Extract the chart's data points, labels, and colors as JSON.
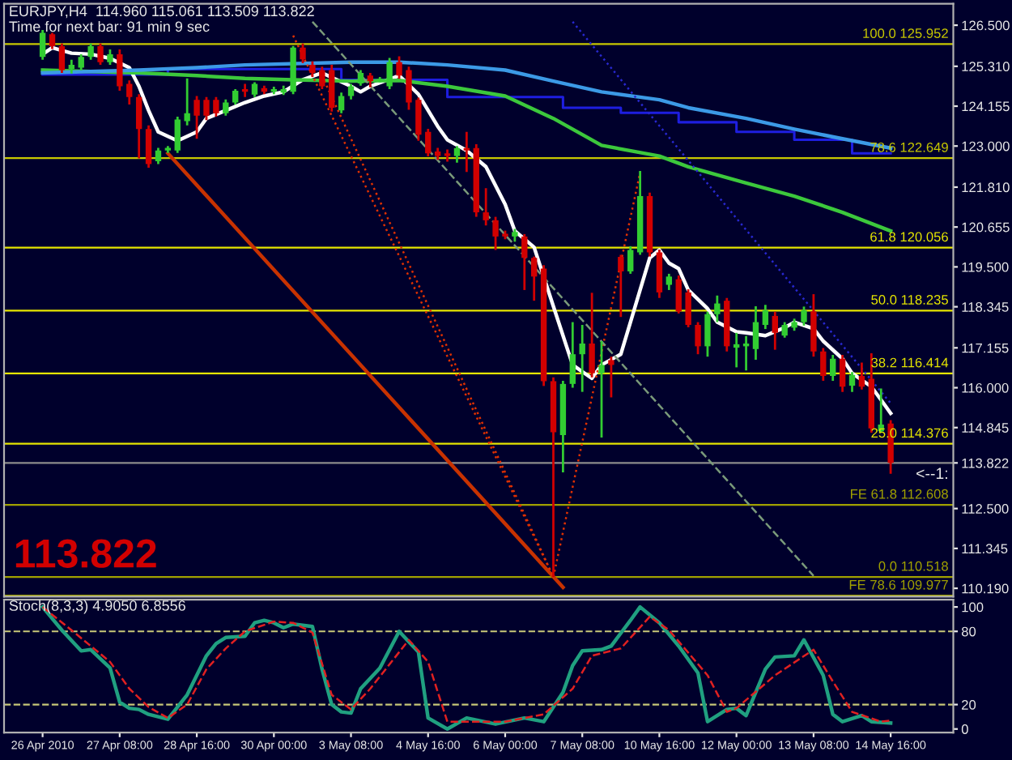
{
  "chart_data": [
    {
      "type": "candlestick",
      "title": "EURJPY,H4  114.960 115.061 113.509 113.822",
      "subtitle": "Time for next bar: 91 min 9 sec",
      "categories": [
        null,
        null,
        null,
        null,
        null,
        null,
        null,
        null,
        null,
        null,
        null,
        null,
        null,
        null,
        null,
        null,
        null,
        null,
        null,
        null,
        null,
        null,
        null,
        null,
        null,
        null,
        null,
        null,
        null,
        null,
        null,
        null,
        null,
        null,
        null,
        null,
        null,
        null,
        null,
        null,
        null,
        null,
        null,
        null,
        null,
        null,
        null,
        null,
        null,
        null,
        null,
        null,
        null,
        null,
        null,
        null,
        null,
        null,
        null,
        null,
        null,
        null,
        null,
        null,
        null,
        null,
        null,
        null,
        null,
        null,
        null,
        null,
        null,
        null,
        null,
        null,
        null,
        null,
        null,
        null,
        null,
        null,
        null,
        null,
        null,
        null,
        null,
        null,
        null
      ],
      "ohlc": [
        [
          125.58,
          126.36,
          125.5,
          126.28
        ],
        [
          126.24,
          126.28,
          125.81,
          125.89
        ],
        [
          125.89,
          125.97,
          125.12,
          125.2
        ],
        [
          125.23,
          125.5,
          125.1,
          125.35
        ],
        [
          125.27,
          125.66,
          125.2,
          125.58
        ],
        [
          125.58,
          125.97,
          125.5,
          125.89
        ],
        [
          125.89,
          125.97,
          125.35,
          125.43
        ],
        [
          125.43,
          125.8,
          125.35,
          125.66
        ],
        [
          125.66,
          125.8,
          124.6,
          124.73
        ],
        [
          124.8,
          124.9,
          124.2,
          124.42
        ],
        [
          124.42,
          124.5,
          122.64,
          123.49
        ],
        [
          123.49,
          123.6,
          122.37,
          122.48
        ],
        [
          122.56,
          122.95,
          122.48,
          122.87
        ],
        [
          122.87,
          123.0,
          122.8,
          122.95
        ],
        [
          122.87,
          123.85,
          122.8,
          123.77
        ],
        [
          123.72,
          124.96,
          123.6,
          123.95
        ],
        [
          124.34,
          124.45,
          123.21,
          123.88
        ],
        [
          124.34,
          124.42,
          123.75,
          123.88
        ],
        [
          124.34,
          124.42,
          123.85,
          123.95
        ],
        [
          123.95,
          124.35,
          123.88,
          124.26
        ],
        [
          124.26,
          124.65,
          124.2,
          124.6
        ],
        [
          124.65,
          124.8,
          124.42,
          124.57
        ],
        [
          124.49,
          124.85,
          124.42,
          124.8
        ],
        [
          124.68,
          124.75,
          124.5,
          124.57
        ],
        [
          124.57,
          124.72,
          124.5,
          124.65
        ],
        [
          124.55,
          124.75,
          124.48,
          124.65
        ],
        [
          124.57,
          125.9,
          124.5,
          125.85
        ],
        [
          125.85,
          125.97,
          125.4,
          125.51
        ],
        [
          125.35,
          125.45,
          125.0,
          125.12
        ],
        [
          125.2,
          125.3,
          124.65,
          124.73
        ],
        [
          125.2,
          125.35,
          124.0,
          124.11
        ],
        [
          124.03,
          124.55,
          123.95,
          124.45
        ],
        [
          124.45,
          124.8,
          124.35,
          124.73
        ],
        [
          124.81,
          125.2,
          124.75,
          125.12
        ],
        [
          125.04,
          125.12,
          124.7,
          124.88
        ],
        [
          124.9,
          125.0,
          124.85,
          124.95
        ],
        [
          124.73,
          125.55,
          124.65,
          125.43
        ],
        [
          125.43,
          125.6,
          124.95,
          125.04
        ],
        [
          125.2,
          125.3,
          124.05,
          124.26
        ],
        [
          124.34,
          124.4,
          123.15,
          123.33
        ],
        [
          123.41,
          123.5,
          122.7,
          122.79
        ],
        [
          122.84,
          122.95,
          122.6,
          122.71
        ],
        [
          122.79,
          122.9,
          122.55,
          122.71
        ],
        [
          122.71,
          123.0,
          122.52,
          122.94
        ],
        [
          122.94,
          123.41,
          122.25,
          122.87
        ],
        [
          122.94,
          123.05,
          120.95,
          121.08
        ],
        [
          121.08,
          121.78,
          120.7,
          120.85
        ],
        [
          120.85,
          120.95,
          119.99,
          120.38
        ],
        [
          120.46,
          120.55,
          120.3,
          120.38
        ],
        [
          120.38,
          120.6,
          120.23,
          120.51
        ],
        [
          120.38,
          120.45,
          118.83,
          119.76
        ],
        [
          119.76,
          119.8,
          118.52,
          119.22
        ],
        [
          119.45,
          119.55,
          116.05,
          116.19
        ],
        [
          116.19,
          116.3,
          110.52,
          114.71
        ],
        [
          114.63,
          116.2,
          113.55,
          116.11
        ],
        [
          116.11,
          117.9,
          116.0,
          116.97
        ],
        [
          116.97,
          117.82,
          115.88,
          117.28
        ],
        [
          117.28,
          118.75,
          116.3,
          116.42
        ],
        [
          116.42,
          117.35,
          114.56,
          116.66
        ],
        [
          116.8,
          116.9,
          115.72,
          116.66
        ],
        [
          119.79,
          119.85,
          118.05,
          119.37
        ],
        [
          119.37,
          120.1,
          119.3,
          119.99
        ],
        [
          119.92,
          122.28,
          119.85,
          121.55
        ],
        [
          121.55,
          121.65,
          119.8,
          119.92
        ],
        [
          119.92,
          120.0,
          118.6,
          118.76
        ],
        [
          118.98,
          119.3,
          118.83,
          119.22
        ],
        [
          119.14,
          119.25,
          118.15,
          118.21
        ],
        [
          118.76,
          118.85,
          117.75,
          117.82
        ],
        [
          117.82,
          117.9,
          116.97,
          117.2
        ],
        [
          117.2,
          118.2,
          116.9,
          118.13
        ],
        [
          118.13,
          118.67,
          117.9,
          118.44
        ],
        [
          118.52,
          118.6,
          117.05,
          117.2
        ],
        [
          117.16,
          117.59,
          116.59,
          117.26
        ],
        [
          117.2,
          117.5,
          116.5,
          117.28
        ],
        [
          117.12,
          118.36,
          116.81,
          117.9
        ],
        [
          117.82,
          118.4,
          117.7,
          118.24
        ],
        [
          118.08,
          118.2,
          117.1,
          117.59
        ],
        [
          117.51,
          117.9,
          117.45,
          117.82
        ],
        [
          117.74,
          118.0,
          117.65,
          117.9
        ],
        [
          117.9,
          118.35,
          117.8,
          118.24
        ],
        [
          118.21,
          118.71,
          116.9,
          117.05
        ],
        [
          117.05,
          117.15,
          116.2,
          116.34
        ],
        [
          116.34,
          116.95,
          116.2,
          116.84
        ],
        [
          116.84,
          116.95,
          115.88,
          116.03
        ],
        [
          116.06,
          116.45,
          115.88,
          116.37
        ],
        [
          116.34,
          116.73,
          115.95,
          116.03
        ],
        [
          116.26,
          117.0,
          114.7,
          114.82
        ],
        [
          114.74,
          115.98,
          114.7,
          114.93
        ],
        [
          114.96,
          115.061,
          113.509,
          113.822
        ]
      ],
      "colors": [
        "#32cd32",
        "#d20000",
        "#d20000",
        "#32cd32",
        "#32cd32",
        "#32cd32",
        "#d20000",
        "#32cd32",
        "#d20000",
        "#d20000",
        "#d20000",
        "#d20000",
        "#32cd32",
        "#32cd32",
        "#32cd32",
        "#32cd32",
        "#d20000",
        "#d20000",
        "#d20000",
        "#32cd32",
        "#32cd32",
        "#d20000",
        "#32cd32",
        "#d20000",
        "#32cd32",
        "#32cd32",
        "#32cd32",
        "#d20000",
        "#d20000",
        "#d20000",
        "#d20000",
        "#32cd32",
        "#32cd32",
        "#32cd32",
        "#d20000",
        "#32cd32",
        "#32cd32",
        "#d20000",
        "#d20000",
        "#d20000",
        "#d20000",
        "#d20000",
        "#d20000",
        "#32cd32",
        "#d20000",
        "#d20000",
        "#d20000",
        "#d20000",
        "#d20000",
        "#32cd32",
        "#d20000",
        "#d20000",
        "#d20000",
        "#d20000",
        "#32cd32",
        "#32cd32",
        "#32cd32",
        "#d20000",
        "#32cd32",
        "#d20000",
        "#d20000",
        "#32cd32",
        "#32cd32",
        "#d20000",
        "#d20000",
        "#32cd32",
        "#d20000",
        "#d20000",
        "#d20000",
        "#32cd32",
        "#32cd32",
        "#d20000",
        "#32cd32",
        "#32cd32",
        "#32cd32",
        "#32cd32",
        "#d20000",
        "#32cd32",
        "#32cd32",
        "#32cd32",
        "#d20000",
        "#d20000",
        "#32cd32",
        "#d20000",
        "#32cd32",
        "#d20000",
        "#d20000",
        "#32cd32",
        "#d20000"
      ],
      "series": [
        {
          "type": "line",
          "color": "#ffffff",
          "values": [
            125.66,
            125.85,
            null,
            125.69,
            null,
            125.66,
            null,
            125.54,
            null,
            125.27,
            124.73,
            124.03,
            123.41,
            null,
            123.15,
            null,
            123.41,
            123.8,
            null,
            124.03,
            null,
            124.26,
            null,
            124.45,
            null,
            124.57,
            null,
            124.92,
            null,
            125.12,
            null,
            null,
            124.73,
            124.57,
            124.73,
            null,
            null,
            125.04,
            null,
            124.5,
            null,
            123.57,
            123.18,
            null,
            122.87,
            null,
            122.4,
            null,
            121.31,
            120.54,
            null,
            120.07,
            null,
            118.36,
            null,
            116.66,
            null,
            116.27,
            116.66,
            null,
            116.97,
            117.9,
            118.83,
            119.76,
            119.99,
            119.61,
            119.45,
            118.83,
            null,
            118.29,
            117.9,
            null,
            117.62,
            117.59,
            null,
            117.51,
            null,
            117.74,
            117.9,
            null,
            117.71,
            117.35,
            null,
            116.84,
            116.42,
            null,
            116.03,
            115.65,
            115.26
          ]
        },
        {
          "type": "line",
          "color": "#3cc83c",
          "values": [
            125.2,
            null,
            null,
            null,
            null,
            null,
            null,
            null,
            null,
            null,
            125.12,
            null,
            null,
            null,
            null,
            null,
            125.04,
            null,
            null,
            null,
            null,
            124.96,
            null,
            null,
            null,
            null,
            124.92,
            null,
            null,
            null,
            null,
            null,
            124.88,
            null,
            null,
            null,
            null,
            124.9,
            null,
            null,
            null,
            null,
            124.73,
            null,
            null,
            null,
            null,
            null,
            124.45,
            null,
            null,
            null,
            null,
            123.8,
            null,
            null,
            null,
            null,
            123.02,
            null,
            null,
            null,
            null,
            null,
            122.71,
            null,
            null,
            122.4,
            null,
            null,
            null,
            null,
            null,
            121.93,
            null,
            null,
            null,
            null,
            121.55,
            null,
            null,
            null,
            null,
            121.08,
            null,
            null,
            null,
            null,
            120.54
          ]
        },
        {
          "type": "line",
          "color": "#3c9ae6",
          "values": [
            125.12,
            null,
            null,
            null,
            null,
            null,
            null,
            null,
            null,
            null,
            125.2,
            null,
            null,
            null,
            null,
            null,
            125.27,
            null,
            null,
            null,
            null,
            125.35,
            null,
            null,
            null,
            null,
            null,
            null,
            null,
            null,
            null,
            null,
            125.43,
            null,
            null,
            null,
            null,
            125.43,
            null,
            null,
            null,
            null,
            125.35,
            null,
            null,
            null,
            null,
            null,
            125.2,
            null,
            null,
            null,
            null,
            124.88,
            null,
            null,
            null,
            null,
            124.57,
            null,
            null,
            null,
            null,
            null,
            124.34,
            null,
            null,
            124.11,
            null,
            null,
            null,
            null,
            null,
            123.8,
            null,
            null,
            null,
            null,
            123.49,
            null,
            null,
            null,
            null,
            123.21,
            null,
            null,
            null,
            null,
            122.94
          ]
        },
        {
          "type": "step",
          "color": "#1e1ee0",
          "values": [
            125.07,
            null,
            null,
            null,
            null,
            null,
            null,
            null,
            null,
            null,
            null,
            null,
            null,
            125.23,
            null,
            null,
            null,
            null,
            null,
            null,
            null,
            null,
            null,
            null,
            null,
            null,
            null,
            null,
            null,
            null,
            null,
            124.92,
            null,
            null,
            null,
            null,
            null,
            null,
            null,
            null,
            null,
            null,
            124.42,
            null,
            null,
            null,
            null,
            null,
            null,
            null,
            null,
            null,
            null,
            null,
            124.11,
            null,
            null,
            null,
            null,
            null,
            123.96,
            null,
            null,
            null,
            null,
            null,
            123.69,
            null,
            null,
            null,
            null,
            null,
            123.41,
            null,
            null,
            null,
            null,
            null,
            123.18,
            null,
            null,
            null,
            null,
            null,
            122.79,
            null,
            null,
            null,
            122.79
          ]
        },
        {
          "type": "line",
          "color": "#c83200",
          "line_style": "solid",
          "values": [
            null,
            null,
            null,
            null,
            null,
            null,
            null,
            null,
            null,
            null,
            null,
            null,
            null,
            122.79,
            null,
            null,
            null,
            null,
            null,
            null,
            null,
            null,
            null,
            null,
            null,
            null,
            null,
            null,
            null,
            null,
            null,
            null,
            null,
            null,
            null,
            null,
            null,
            null,
            null,
            null,
            null,
            null,
            null,
            null,
            null,
            null,
            null,
            null,
            null,
            null,
            null,
            null,
            null,
            null,
            110.22,
            null,
            null,
            null,
            null,
            null,
            null,
            null,
            null,
            null,
            null,
            null,
            null,
            null,
            null,
            null,
            null,
            null,
            null,
            null,
            null,
            null,
            null,
            null,
            null,
            null,
            null,
            null,
            null,
            null,
            null,
            null,
            null,
            null,
            null
          ]
        },
        {
          "type": "line",
          "color": "#e03000",
          "line_style": "dotted",
          "values": [
            null,
            null,
            null,
            null,
            null,
            null,
            null,
            null,
            null,
            null,
            null,
            null,
            null,
            null,
            null,
            null,
            null,
            null,
            null,
            null,
            null,
            null,
            null,
            null,
            null,
            null,
            126.2,
            null,
            null,
            null,
            null,
            null,
            null,
            null,
            null,
            null,
            null,
            null,
            null,
            null,
            null,
            null,
            null,
            null,
            null,
            null,
            null,
            null,
            null,
            null,
            null,
            null,
            null,
            110.52,
            null,
            null,
            null,
            null,
            null,
            null,
            null,
            null,
            null,
            null,
            null,
            null,
            null,
            null,
            null,
            null,
            null,
            null,
            null,
            null,
            null,
            null,
            null,
            null,
            null,
            null,
            null,
            null,
            null,
            null,
            null,
            null,
            null,
            null,
            null
          ]
        },
        {
          "type": "line",
          "color": "#e03000",
          "line_style": "dotted",
          "values": [
            null,
            null,
            null,
            null,
            null,
            null,
            null,
            null,
            null,
            null,
            null,
            null,
            null,
            null,
            null,
            null,
            null,
            null,
            null,
            null,
            null,
            null,
            null,
            null,
            null,
            null,
            null,
            null,
            null,
            125.03,
            null,
            null,
            null,
            null,
            null,
            null,
            null,
            null,
            null,
            null,
            null,
            null,
            null,
            null,
            null,
            null,
            null,
            null,
            null,
            null,
            null,
            null,
            null,
            110.52,
            null,
            null,
            null,
            null,
            null,
            null,
            null,
            null,
            null,
            null,
            null,
            null,
            null,
            null,
            null,
            null,
            null,
            null,
            null,
            null,
            null,
            null,
            null,
            null,
            null,
            null,
            null,
            null,
            null,
            null,
            null,
            null,
            null,
            null,
            null
          ]
        },
        {
          "type": "line",
          "color": "#e03000",
          "line_style": "dotted",
          "values": [
            null,
            null,
            null,
            null,
            null,
            null,
            null,
            null,
            null,
            null,
            null,
            null,
            null,
            null,
            null,
            null,
            null,
            null,
            null,
            null,
            null,
            null,
            null,
            null,
            null,
            null,
            null,
            null,
            null,
            null,
            null,
            null,
            null,
            null,
            null,
            null,
            null,
            null,
            null,
            null,
            null,
            null,
            null,
            null,
            null,
            null,
            null,
            null,
            null,
            null,
            null,
            null,
            null,
            110.52,
            null,
            null,
            null,
            null,
            null,
            null,
            null,
            null,
            122.23,
            null,
            null,
            null,
            null,
            null,
            null,
            null,
            null,
            null,
            null,
            null,
            null,
            null,
            null,
            null,
            null,
            null,
            null,
            null,
            null,
            null,
            null,
            null,
            null,
            null,
            null
          ]
        },
        {
          "type": "line",
          "color": "#7a9a7a",
          "line_style": "dashed",
          "values": [
            null,
            null,
            null,
            null,
            null,
            null,
            null,
            null,
            null,
            null,
            null,
            null,
            null,
            null,
            null,
            null,
            null,
            null,
            null,
            null,
            null,
            null,
            null,
            null,
            null,
            null,
            null,
            null,
            126.6,
            null,
            null,
            null,
            null,
            null,
            null,
            null,
            null,
            null,
            null,
            null,
            null,
            null,
            null,
            null,
            null,
            null,
            null,
            null,
            null,
            null,
            null,
            null,
            null,
            null,
            null,
            null,
            null,
            null,
            null,
            null,
            null,
            null,
            null,
            null,
            null,
            null,
            null,
            null,
            null,
            null,
            null,
            null,
            null,
            null,
            null,
            null,
            null,
            null,
            null,
            null,
            110.55,
            null,
            null,
            null,
            null,
            null,
            null,
            null,
            null
          ]
        },
        {
          "type": "line",
          "color": "#2828d0",
          "line_style": "dotted",
          "values": [
            null,
            null,
            null,
            null,
            null,
            null,
            null,
            null,
            null,
            null,
            null,
            null,
            null,
            null,
            null,
            null,
            null,
            null,
            null,
            null,
            null,
            null,
            null,
            null,
            null,
            null,
            null,
            null,
            null,
            null,
            null,
            null,
            null,
            null,
            null,
            null,
            null,
            null,
            null,
            null,
            null,
            null,
            null,
            null,
            null,
            null,
            null,
            null,
            null,
            null,
            null,
            null,
            null,
            null,
            null,
            126.6,
            null,
            null,
            null,
            null,
            null,
            null,
            null,
            null,
            null,
            null,
            null,
            null,
            null,
            null,
            null,
            null,
            null,
            null,
            null,
            null,
            null,
            null,
            null,
            null,
            null,
            null,
            null,
            null,
            null,
            null,
            null,
            null,
            115.55
          ]
        }
      ],
      "ref_lines": [
        {
          "axis": "y",
          "value": 125.952,
          "label": "100.0 125.952",
          "color": "#c8c800"
        },
        {
          "axis": "y",
          "value": 122.649,
          "label": "78.6 122.649",
          "color": "#c8c800"
        },
        {
          "axis": "y",
          "value": 120.056,
          "label": "61.8 120.056",
          "color": "#e6e600"
        },
        {
          "axis": "y",
          "value": 118.235,
          "label": "50.0 118.235",
          "color": "#e6e600"
        },
        {
          "axis": "y",
          "value": 116.414,
          "label": "38.2 116.414",
          "color": "#e6e600"
        },
        {
          "axis": "y",
          "value": 114.376,
          "label": "25.0 114.376",
          "color": "#e6e600"
        },
        {
          "axis": "y",
          "value": 113.822,
          "label": null,
          "color": "#8c8c8c"
        },
        {
          "axis": "y",
          "value": 112.608,
          "label": "FE 61.8 112.608",
          "color": "#a0a000"
        },
        {
          "axis": "y",
          "value": 110.518,
          "label": "0.0 110.518",
          "color": "#a0a000"
        },
        {
          "axis": "y",
          "value": 109.977,
          "label": "FE 78.6 109.977",
          "color": "#a0a000"
        }
      ],
      "annotations": [
        "113.822",
        "<--1:"
      ],
      "ylim": [
        109.95,
        127.12
      ],
      "yticks": [
        {
          "value": 126.5,
          "label": "126.500"
        },
        {
          "value": 125.31,
          "label": "125.310"
        },
        {
          "value": 124.155,
          "label": "124.155"
        },
        {
          "value": 123.0,
          "label": "123.000"
        },
        {
          "value": 121.81,
          "label": "121.810"
        },
        {
          "value": 120.655,
          "label": "120.655"
        },
        {
          "value": 119.5,
          "label": "119.500"
        },
        {
          "value": 118.345,
          "label": "118.345"
        },
        {
          "value": 117.155,
          "label": "117.155"
        },
        {
          "value": 116.0,
          "label": "116.000"
        },
        {
          "value": 114.845,
          "label": "114.845"
        },
        {
          "value": 113.822,
          "label": "113.822"
        },
        {
          "value": 112.5,
          "label": "112.500"
        },
        {
          "value": 111.345,
          "label": "111.345"
        },
        {
          "value": 110.19,
          "label": "110.190"
        }
      ],
      "tick_labels": "y"
    },
    {
      "type": "line",
      "title": "Stoch(8,3,3) 4.9050 6.8556",
      "series": [
        {
          "color": "#20a080",
          "line_style": "solid",
          "values": [
            100,
            null,
            81,
            null,
            64,
            65,
            null,
            50,
            22,
            17,
            16,
            12,
            null,
            8,
            null,
            28,
            null,
            60,
            70,
            75,
            null,
            76,
            87,
            89,
            87,
            83,
            86,
            null,
            84,
            49,
            20,
            14,
            13,
            33,
            null,
            50,
            null,
            80,
            null,
            63,
            9,
            null,
            0,
            null,
            9,
            null,
            null,
            4,
            null,
            null,
            9,
            null,
            6,
            null,
            30,
            52,
            64,
            null,
            65,
            68,
            null,
            89,
            100,
            null,
            87,
            null,
            68,
            null,
            46,
            6,
            null,
            16,
            17,
            11,
            null,
            49,
            59,
            null,
            60,
            73,
            null,
            44,
            12,
            6,
            null,
            11,
            6,
            null,
            4.9
          ]
        },
        {
          "color": "#e02020",
          "line_style": "dashed",
          "values": [
            100,
            null,
            null,
            81,
            null,
            68,
            null,
            55,
            null,
            33,
            null,
            18,
            null,
            9,
            null,
            20,
            null,
            49,
            null,
            66,
            null,
            80,
            null,
            null,
            88,
            null,
            87,
            null,
            79,
            null,
            28,
            null,
            16,
            null,
            33,
            null,
            null,
            null,
            73,
            null,
            55,
            null,
            6,
            null,
            6,
            null,
            null,
            null,
            6,
            null,
            null,
            null,
            12,
            null,
            null,
            33,
            null,
            60,
            null,
            null,
            66,
            null,
            null,
            92,
            null,
            81,
            null,
            null,
            null,
            44,
            null,
            14,
            17,
            null,
            null,
            null,
            44,
            null,
            null,
            null,
            65,
            null,
            39,
            null,
            14,
            null,
            null,
            6,
            6.9
          ]
        }
      ],
      "ref_lines": [
        {
          "axis": "y",
          "value": 80,
          "label": null,
          "color": "#c8c878",
          "line_style": "dashed"
        },
        {
          "axis": "y",
          "value": 20,
          "label": null,
          "color": "#c8c878",
          "line_style": "dashed"
        }
      ],
      "ylim": [
        -3,
        106
      ],
      "yticks": [
        0,
        20,
        80,
        100
      ],
      "categories": [
        "26 Apr 2010",
        null,
        null,
        null,
        null,
        null,
        null,
        null,
        "27 Apr 08:00",
        null,
        null,
        null,
        null,
        null,
        null,
        null,
        "28 Apr 16:00",
        null,
        null,
        null,
        null,
        null,
        null,
        null,
        "30 Apr 00:00",
        null,
        null,
        null,
        null,
        null,
        null,
        null,
        "3 May 08:00",
        null,
        null,
        null,
        null,
        null,
        null,
        null,
        "4 May 16:00",
        null,
        null,
        null,
        null,
        null,
        null,
        null,
        "6 May 00:00",
        null,
        null,
        null,
        null,
        null,
        null,
        null,
        "7 May 08:00",
        null,
        null,
        null,
        null,
        null,
        null,
        null,
        "10 May 16:00",
        null,
        null,
        null,
        null,
        null,
        null,
        null,
        "12 May 00:00",
        null,
        null,
        null,
        null,
        null,
        null,
        null,
        "13 May 08:00",
        null,
        null,
        null,
        null,
        null,
        null,
        null,
        "14 May 16:00"
      ]
    }
  ]
}
